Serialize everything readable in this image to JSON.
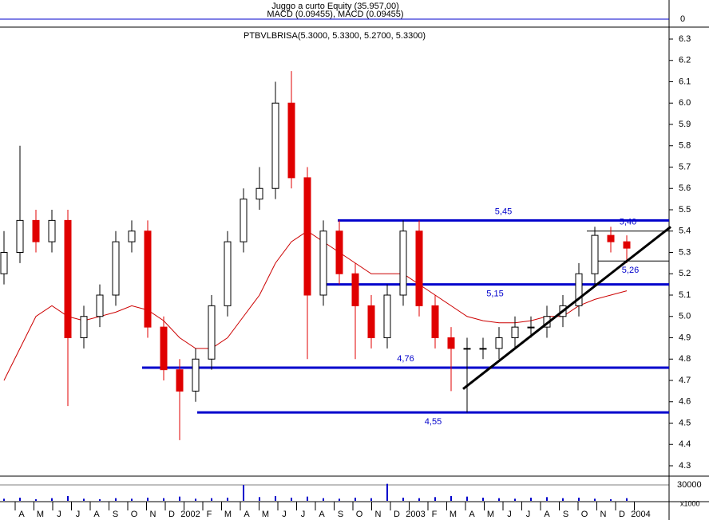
{
  "chart_data": {
    "type": "candlestick",
    "title": "PTBVLBRISA(5.3000, 5.3300, 5.2700, 5.3300)",
    "top_panel_title": "Juggo a curto Equity (35.957,00)",
    "top_panel_subtitle": "MACD (0.09455), MACD (0.09455)",
    "top_panel_tick": 0,
    "volume_tick": 30000,
    "volume_unit": "x1000",
    "xlabels": [
      "A",
      "M",
      "J",
      "J",
      "A",
      "S",
      "O",
      "N",
      "D",
      "2002",
      "F",
      "M",
      "A",
      "M",
      "J",
      "J",
      "A",
      "S",
      "O",
      "N",
      "D",
      "2003",
      "F",
      "M",
      "A",
      "M",
      "J",
      "J",
      "A",
      "S",
      "O",
      "N",
      "D",
      "2004"
    ],
    "open": [
      5.2,
      5.3,
      5.45,
      5.35,
      5.45,
      4.9,
      5.0,
      5.1,
      5.35,
      5.4,
      4.95,
      4.75,
      4.65,
      4.8,
      5.05,
      5.35,
      5.55,
      5.6,
      6.0,
      5.65,
      5.1,
      5.4,
      5.2,
      5.05,
      4.9,
      5.1,
      5.4,
      5.05,
      4.9,
      4.85,
      4.85,
      4.85,
      4.9,
      4.95,
      4.95,
      5.0,
      5.05,
      5.2,
      5.38,
      5.35
    ],
    "high": [
      5.4,
      5.8,
      5.5,
      5.5,
      5.5,
      5.05,
      5.15,
      5.4,
      5.45,
      5.45,
      5.0,
      4.8,
      4.85,
      5.1,
      5.4,
      5.6,
      5.7,
      6.1,
      6.15,
      5.7,
      5.45,
      5.45,
      5.25,
      5.1,
      5.15,
      5.45,
      5.45,
      5.1,
      4.95,
      4.9,
      4.9,
      4.95,
      5.0,
      5.0,
      5.05,
      5.1,
      5.25,
      5.42,
      5.42,
      5.38
    ],
    "low": [
      5.15,
      5.25,
      5.3,
      5.3,
      4.58,
      4.85,
      4.95,
      5.05,
      5.3,
      4.9,
      4.7,
      4.42,
      4.6,
      4.75,
      5.0,
      5.3,
      5.5,
      5.55,
      5.6,
      4.8,
      5.05,
      5.15,
      4.8,
      4.85,
      4.85,
      5.05,
      5.0,
      4.85,
      4.65,
      4.55,
      4.8,
      4.8,
      4.85,
      4.9,
      4.9,
      4.95,
      5.0,
      5.15,
      5.3,
      5.25
    ],
    "close": [
      5.3,
      5.45,
      5.35,
      5.45,
      4.9,
      5.0,
      5.1,
      5.35,
      5.4,
      4.95,
      4.75,
      4.65,
      4.8,
      5.05,
      5.35,
      5.55,
      5.6,
      6.0,
      5.65,
      5.1,
      5.4,
      5.2,
      5.05,
      4.9,
      5.1,
      5.4,
      5.05,
      4.9,
      4.85,
      4.85,
      4.85,
      4.9,
      4.95,
      4.95,
      5.0,
      5.05,
      5.2,
      5.38,
      5.35,
      5.32
    ],
    "series": [
      {
        "color": "#cc0000",
        "values": [
          4.7,
          4.85,
          5.0,
          5.05,
          5.0,
          4.98,
          5.0,
          5.02,
          5.05,
          5.03,
          4.98,
          4.9,
          4.85,
          4.85,
          4.9,
          5.0,
          5.1,
          5.25,
          5.35,
          5.4,
          5.35,
          5.3,
          5.25,
          5.2,
          5.2,
          5.2,
          5.15,
          5.1,
          5.05,
          5.0,
          4.98,
          4.97,
          4.97,
          4.98,
          5.0,
          5.0,
          5.05,
          5.08,
          5.1,
          5.12
        ]
      }
    ],
    "volume": [
      4000,
      6000,
      3000,
      5000,
      9000,
      4000,
      3000,
      5000,
      4000,
      6000,
      5000,
      8000,
      4000,
      5000,
      6000,
      30000,
      7000,
      9000,
      6000,
      8000,
      5000,
      4000,
      6000,
      5000,
      32000,
      6000,
      5000,
      7000,
      9000,
      8000,
      6000,
      5000,
      4000,
      6000,
      7000,
      5000,
      6000,
      4000,
      3000,
      5000
    ],
    "levels": [
      {
        "value": 5.45,
        "label": "5,45",
        "from": 20.9,
        "color": "#0000cc"
      },
      {
        "value": 5.15,
        "label": "5,15",
        "from": 19.85,
        "color": "#0000cc"
      },
      {
        "value": 4.76,
        "label": "4,76",
        "from": 8.65,
        "color": "#0000cc"
      },
      {
        "value": 4.55,
        "label": "4,55",
        "from": 12.1,
        "color": "#0000cc"
      },
      {
        "value": 5.4,
        "label": "5,40",
        "from": 36.5,
        "color": "#000000"
      },
      {
        "value": 5.26,
        "label": "5,26",
        "from": 36.8,
        "color": "#000000"
      }
    ],
    "trendline": {
      "from": [
        28.75,
        4.66
      ],
      "to": [
        41.75,
        5.42
      ]
    },
    "ylim": [
      4.3,
      6.3
    ],
    "yticks": [
      4.3,
      4.4,
      4.5,
      4.6,
      4.7,
      4.8,
      4.9,
      {
        "value": 5.0,
        "label": "5.0"
      },
      5.1,
      5.2,
      5.3,
      5.4,
      5.5,
      5.6,
      5.7,
      5.8,
      5.9,
      {
        "value": 6.0,
        "label": "6.0"
      },
      6.1,
      6.2,
      6.3
    ]
  }
}
